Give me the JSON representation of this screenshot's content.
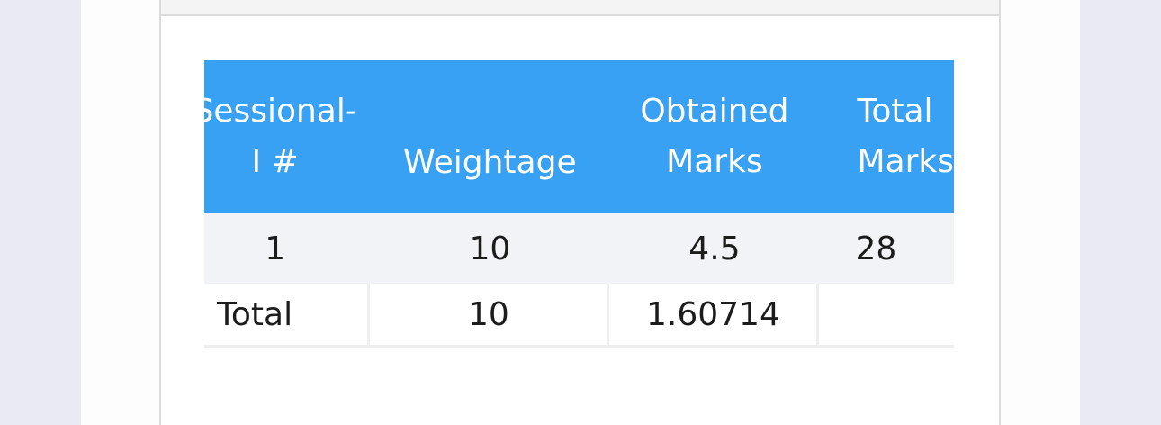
{
  "table": {
    "headers": {
      "sessional": [
        "Sessional-",
        "I #"
      ],
      "weightage": "Weightage",
      "obtained": [
        "Obtained",
        "Marks"
      ],
      "total": [
        "Total",
        "Marks"
      ]
    },
    "rows": [
      {
        "sessional": "1",
        "weightage": "10",
        "obtained": "4.5",
        "total": "28"
      }
    ],
    "total_row": {
      "label": "Total",
      "weightage": "10",
      "obtained": "1.60714",
      "total": ""
    }
  },
  "colors": {
    "header_bg": "#38a1f3",
    "row_bg": "#f2f3f7",
    "page_bg": "#e9eaf4"
  }
}
